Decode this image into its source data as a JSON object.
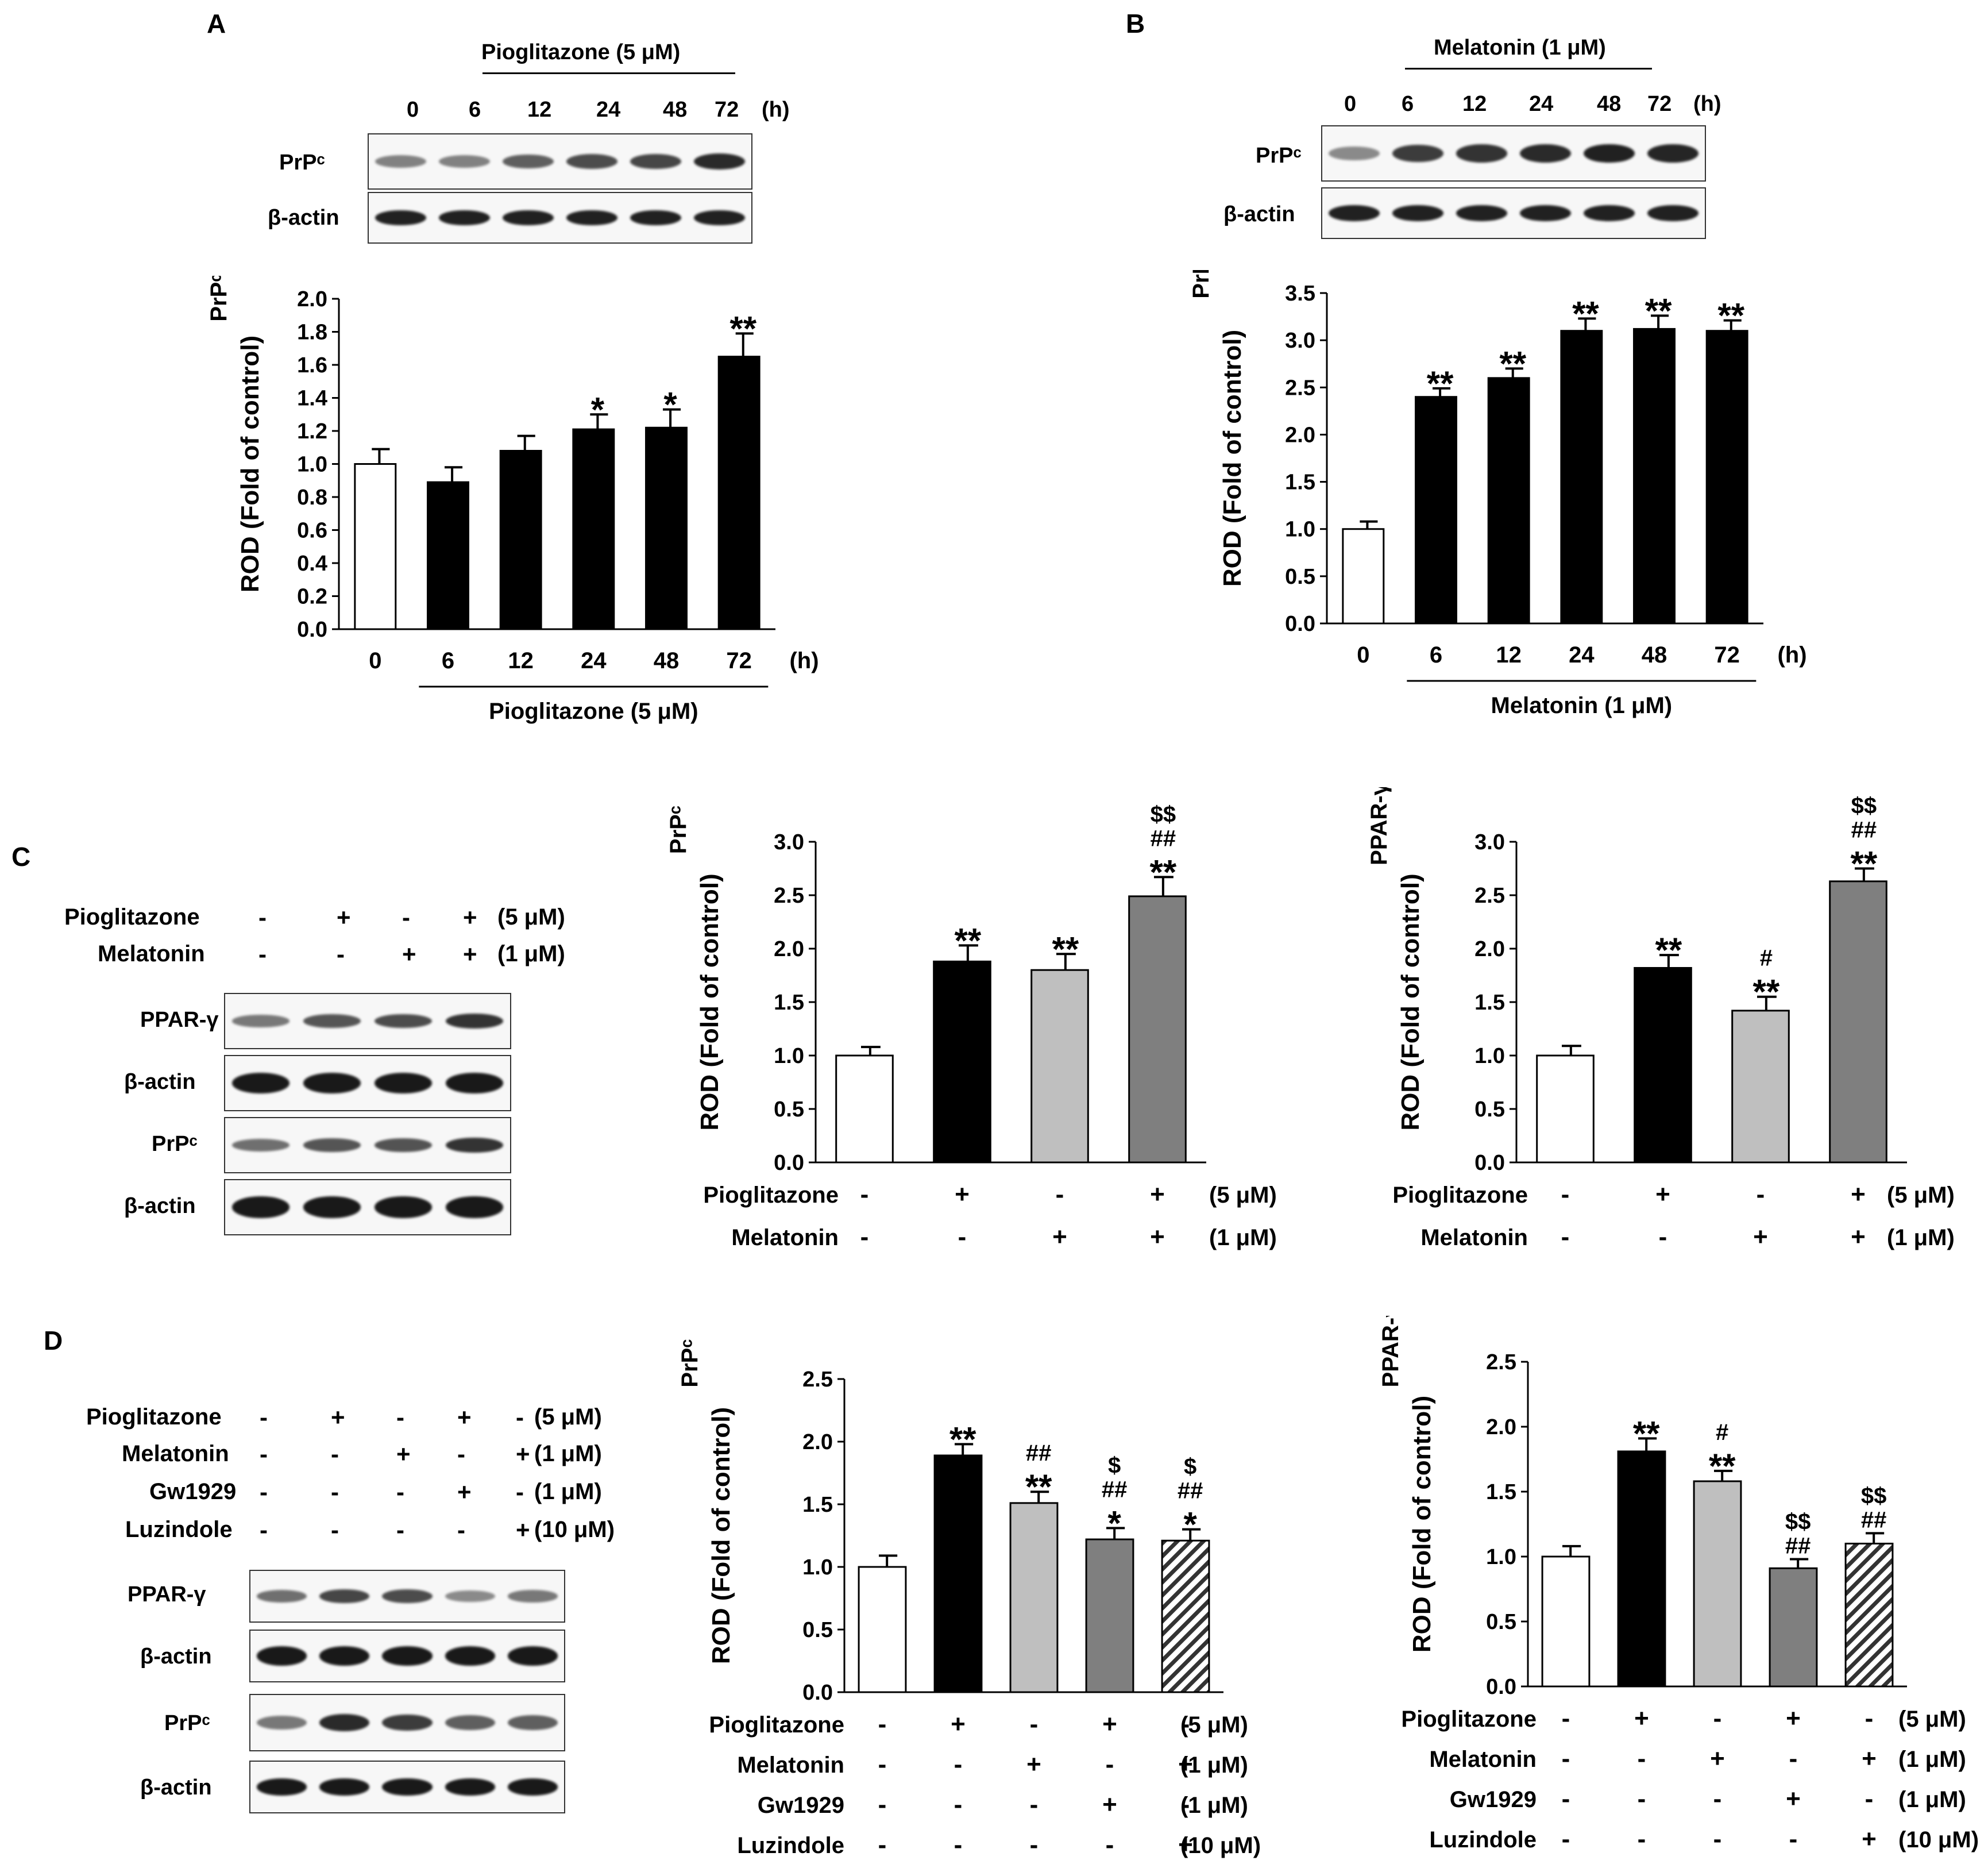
{
  "panels": {
    "A": {
      "letter": "A",
      "treatment": "Pioglitazone (5 μM)",
      "times": [
        "0",
        "6",
        "12",
        "24",
        "48",
        "72"
      ],
      "unit": "(h)",
      "blot_labels": [
        "PrPᶜ",
        "β-actin"
      ],
      "prp": [
        0.35,
        0.35,
        0.55,
        0.65,
        0.7,
        0.85
      ],
      "actin": [
        0.9,
        0.9,
        0.9,
        0.9,
        0.9,
        0.9
      ]
    },
    "B": {
      "letter": "B",
      "treatment": "Melatonin (1 μM)",
      "times": [
        "0",
        "6",
        "12",
        "24",
        "48",
        "72"
      ],
      "unit": "(h)",
      "blot_labels": [
        "PrPᶜ",
        "β-actin"
      ],
      "prp": [
        0.3,
        0.75,
        0.8,
        0.85,
        0.9,
        0.88
      ],
      "actin": [
        0.9,
        0.9,
        0.9,
        0.9,
        0.9,
        0.9
      ]
    },
    "C": {
      "letter": "C",
      "rows": [
        {
          "name": "Pioglitazone",
          "signs": [
            "-",
            "+",
            "-",
            "+"
          ],
          "dose": "(5 μM)"
        },
        {
          "name": "Melatonin",
          "signs": [
            "-",
            "-",
            "+",
            "+"
          ],
          "dose": "(1 μM)"
        }
      ],
      "blot_labels": [
        "PPAR-γ",
        "β-actin",
        "PrPᶜ",
        "β-actin"
      ],
      "ppar": [
        0.4,
        0.6,
        0.65,
        0.8
      ],
      "prp": [
        0.45,
        0.6,
        0.62,
        0.8
      ],
      "actin": [
        0.95,
        0.95,
        0.95,
        0.95
      ]
    },
    "D": {
      "letter": "D",
      "rows": [
        {
          "name": "Pioglitazone",
          "signs": [
            "-",
            "+",
            "-",
            "+",
            "-"
          ],
          "dose": "(5 μM)"
        },
        {
          "name": "Melatonin",
          "signs": [
            "-",
            "-",
            "+",
            "-",
            "+"
          ],
          "dose": "(1 μM)"
        },
        {
          "name": "Gw1929",
          "signs": [
            "-",
            "-",
            "-",
            "+",
            "-"
          ],
          "dose": "(1 μM)"
        },
        {
          "name": "Luzindole",
          "signs": [
            "-",
            "-",
            "-",
            "-",
            "+"
          ],
          "dose": "(10 μM)"
        }
      ],
      "blot_labels": [
        "PPAR-γ",
        "β-actin",
        "PrPᶜ",
        "β-actin"
      ],
      "ppar": [
        0.45,
        0.7,
        0.65,
        0.3,
        0.4
      ],
      "prp": [
        0.4,
        0.85,
        0.75,
        0.55,
        0.55
      ],
      "actin": [
        0.95,
        0.95,
        0.95,
        0.95,
        0.95
      ]
    }
  },
  "chart_data": [
    {
      "id": "A",
      "type": "bar",
      "ylabel": "ROD (Fold of control)",
      "ylabel_top": "PrPᶜ",
      "ylim": [
        0,
        2.0
      ],
      "yticks": [
        "0.0",
        "0.2",
        "0.4",
        "0.6",
        "0.8",
        "1.0",
        "1.2",
        "1.4",
        "1.6",
        "1.8",
        "2.0"
      ],
      "categories": [
        "0",
        "6",
        "12",
        "24",
        "48",
        "72"
      ],
      "unit": "(h)",
      "values": [
        1.0,
        0.89,
        1.08,
        1.21,
        1.22,
        1.65
      ],
      "errors": [
        0.09,
        0.09,
        0.09,
        0.09,
        0.11,
        0.14
      ],
      "fills": [
        "#ffffff",
        "#000000",
        "#000000",
        "#000000",
        "#000000",
        "#000000"
      ],
      "annotations": [
        [],
        [],
        [],
        [
          "*"
        ],
        [
          "*"
        ],
        [
          "**"
        ]
      ],
      "xlabel": "Pioglitazone (5 μM)"
    },
    {
      "id": "B",
      "type": "bar",
      "ylabel": "ROD (Fold of control)",
      "ylabel_top": "PrPᶜ",
      "ylim": [
        0,
        3.5
      ],
      "yticks": [
        "0.0",
        "0.5",
        "1.0",
        "1.5",
        "2.0",
        "2.5",
        "3.0",
        "3.5"
      ],
      "categories": [
        "0",
        "6",
        "12",
        "24",
        "48",
        "72"
      ],
      "unit": "(h)",
      "values": [
        1.0,
        2.4,
        2.6,
        3.1,
        3.12,
        3.1
      ],
      "errors": [
        0.08,
        0.09,
        0.1,
        0.13,
        0.14,
        0.11
      ],
      "fills": [
        "#ffffff",
        "#000000",
        "#000000",
        "#000000",
        "#000000",
        "#000000"
      ],
      "annotations": [
        [],
        [
          "**"
        ],
        [
          "**"
        ],
        [
          "**"
        ],
        [
          "**"
        ],
        [
          "**"
        ]
      ],
      "xlabel": "Melatonin (1 μM)"
    },
    {
      "id": "C-PrPc",
      "type": "bar",
      "ylabel": "ROD (Fold of control)",
      "ylabel_top": "PrPᶜ",
      "ylim": [
        0,
        3.0
      ],
      "yticks": [
        "0.0",
        "0.5",
        "1.0",
        "1.5",
        "2.0",
        "2.5",
        "3.0"
      ],
      "values": [
        1.0,
        1.88,
        1.8,
        2.49
      ],
      "errors": [
        0.08,
        0.15,
        0.15,
        0.18
      ],
      "fills": [
        "#ffffff",
        "#000000",
        "#bfbfbf",
        "#7f7f7f"
      ],
      "annotations": [
        [],
        [
          "**"
        ],
        [
          "**"
        ],
        [
          "**",
          "##",
          "$$"
        ]
      ],
      "treatments": [
        {
          "name": "Pioglitazone",
          "signs": [
            "-",
            "+",
            "-",
            "+"
          ],
          "dose": "(5 μM)"
        },
        {
          "name": "Melatonin",
          "signs": [
            "-",
            "-",
            "+",
            "+"
          ],
          "dose": "(1 μM)"
        }
      ]
    },
    {
      "id": "C-PPAR",
      "type": "bar",
      "ylabel": "ROD (Fold of control)",
      "ylabel_top": "PPAR-γ",
      "ylim": [
        0,
        3.0
      ],
      "yticks": [
        "0.0",
        "0.5",
        "1.0",
        "1.5",
        "2.0",
        "2.5",
        "3.0"
      ],
      "values": [
        1.0,
        1.82,
        1.42,
        2.63
      ],
      "errors": [
        0.09,
        0.12,
        0.13,
        0.12
      ],
      "fills": [
        "#ffffff",
        "#000000",
        "#bfbfbf",
        "#7f7f7f"
      ],
      "annotations": [
        [],
        [
          "**"
        ],
        [
          "**",
          "#"
        ],
        [
          "**",
          "##",
          "$$"
        ]
      ],
      "treatments": [
        {
          "name": "Pioglitazone",
          "signs": [
            "-",
            "+",
            "-",
            "+"
          ],
          "dose": "(5 μM)"
        },
        {
          "name": "Melatonin",
          "signs": [
            "-",
            "-",
            "+",
            "+"
          ],
          "dose": "(1 μM)"
        }
      ]
    },
    {
      "id": "D-PrPc",
      "type": "bar",
      "ylabel": "ROD (Fold of control)",
      "ylabel_top": "PrPᶜ",
      "ylim": [
        0,
        2.5
      ],
      "yticks": [
        "0.0",
        "0.5",
        "1.0",
        "1.5",
        "2.0",
        "2.5"
      ],
      "values": [
        1.0,
        1.89,
        1.51,
        1.22,
        1.21
      ],
      "errors": [
        0.09,
        0.09,
        0.09,
        0.09,
        0.09
      ],
      "fills": [
        "#ffffff",
        "#000000",
        "#bfbfbf",
        "#7f7f7f",
        "hatch"
      ],
      "annotations": [
        [],
        [
          "**"
        ],
        [
          "**",
          "##"
        ],
        [
          "*",
          "##",
          "$"
        ],
        [
          "*",
          "##",
          "$"
        ]
      ],
      "treatments": [
        {
          "name": "Pioglitazone",
          "signs": [
            "-",
            "+",
            "-",
            "+",
            "-"
          ],
          "dose": "(5 μM)"
        },
        {
          "name": "Melatonin",
          "signs": [
            "-",
            "-",
            "+",
            "-",
            "+"
          ],
          "dose": "(1 μM)"
        },
        {
          "name": "Gw1929",
          "signs": [
            "-",
            "-",
            "-",
            "+",
            "-"
          ],
          "dose": "(1 μM)"
        },
        {
          "name": "Luzindole",
          "signs": [
            "-",
            "-",
            "-",
            "-",
            "+"
          ],
          "dose": "(10 μM)"
        }
      ]
    },
    {
      "id": "D-PPAR",
      "type": "bar",
      "ylabel": "ROD (Fold of control)",
      "ylabel_top": "PPAR-γ",
      "ylim": [
        0,
        2.5
      ],
      "yticks": [
        "0.0",
        "0.5",
        "1.0",
        "1.5",
        "2.0",
        "2.5"
      ],
      "values": [
        1.0,
        1.81,
        1.58,
        0.91,
        1.1
      ],
      "errors": [
        0.08,
        0.1,
        0.08,
        0.07,
        0.08
      ],
      "fills": [
        "#ffffff",
        "#000000",
        "#bfbfbf",
        "#7f7f7f",
        "hatch"
      ],
      "annotations": [
        [],
        [
          "**"
        ],
        [
          "**",
          "#"
        ],
        [
          "##",
          "$$"
        ],
        [
          "##",
          "$$"
        ]
      ],
      "treatments": [
        {
          "name": "Pioglitazone",
          "signs": [
            "-",
            "+",
            "-",
            "+",
            "-"
          ],
          "dose": "(5 μM)"
        },
        {
          "name": "Melatonin",
          "signs": [
            "-",
            "-",
            "+",
            "-",
            "+"
          ],
          "dose": "(1 μM)"
        },
        {
          "name": "Gw1929",
          "signs": [
            "-",
            "-",
            "-",
            "+",
            "-"
          ],
          "dose": "(1 μM)"
        },
        {
          "name": "Luzindole",
          "signs": [
            "-",
            "-",
            "-",
            "-",
            "+"
          ],
          "dose": "(10 μM)"
        }
      ]
    }
  ]
}
